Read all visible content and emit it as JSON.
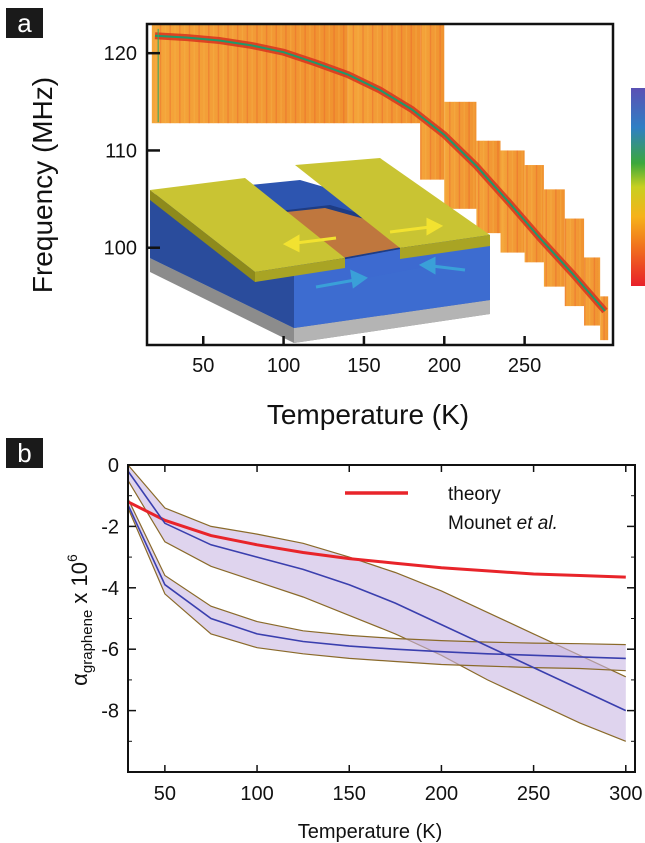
{
  "panel_a": {
    "tag": "a",
    "xlabel": "Temperature (K)",
    "ylabel": "Frequency (MHz)"
  },
  "panel_b": {
    "tag": "b",
    "xlabel": "Temperature (K)",
    "ylabel_main": "α",
    "ylabel_sub": "graphene",
    "ylabel_mult": " x 10",
    "ylabel_exp": "6",
    "legend_line1": "theory",
    "legend_line2_a": "Mounet ",
    "legend_line2_b": "et al."
  },
  "colors": {
    "colorbar": [
      "#e8202a",
      "#f06a1e",
      "#f6b21a",
      "#c8d020",
      "#3ca83c",
      "#2f7fc4",
      "#5b50b4"
    ],
    "theory": "#e8242a",
    "fit": "#3a3fae",
    "band_fill": "#c9b8e3",
    "band_edge": "#8a6a2a"
  },
  "chart_data": [
    {
      "type": "heatmap",
      "description_series": "resonance frequency vs temperature",
      "xlabel": "Temperature (K)",
      "ylabel": "Frequency (MHz)",
      "xlim": [
        15,
        305
      ],
      "ylim": [
        90,
        123
      ],
      "xticks": [
        50,
        100,
        150,
        200,
        250
      ],
      "yticks": [
        100,
        110,
        120
      ],
      "ridge": {
        "x": [
          20,
          40,
          60,
          80,
          100,
          120,
          140,
          160,
          180,
          200,
          220,
          240,
          260,
          280,
          300
        ],
        "y": [
          121.8,
          121.6,
          121.3,
          120.8,
          120.1,
          119.0,
          117.8,
          116.2,
          114.2,
          111.6,
          108.4,
          104.7,
          100.9,
          97.3,
          93.5
        ]
      }
    },
    {
      "type": "line",
      "xlabel": "Temperature (K)",
      "xlim": [
        30,
        305
      ],
      "ylim": [
        -10,
        0
      ],
      "xticks": [
        50,
        100,
        150,
        200,
        250,
        300
      ],
      "yticks": [
        0,
        -2,
        -4,
        -6,
        -8
      ],
      "legend": "top-right",
      "x": [
        30,
        50,
        75,
        100,
        125,
        150,
        175,
        200,
        225,
        250,
        275,
        300
      ],
      "series": [
        {
          "name": "theory Mounet et al.",
          "values": [
            -1.2,
            -1.8,
            -2.3,
            -2.6,
            -2.85,
            -3.05,
            -3.2,
            -3.35,
            -3.45,
            -3.55,
            -3.6,
            -3.65
          ]
        },
        {
          "values": [
            -0.2,
            -1.9,
            -2.6,
            -3.0,
            -3.4,
            -3.9,
            -4.5,
            -5.2,
            -5.9,
            -6.6,
            -7.3,
            -8.0
          ]
        },
        {
          "values": [
            -1.3,
            -3.9,
            -5.0,
            -5.5,
            -5.75,
            -5.9,
            -6.0,
            -6.08,
            -6.15,
            -6.2,
            -6.25,
            -6.3
          ]
        }
      ],
      "bands": [
        {
          "x": [
            30,
            50,
            75,
            100,
            125,
            150,
            175,
            200,
            225,
            250,
            275,
            300
          ],
          "upper": [
            0.0,
            -1.4,
            -2.0,
            -2.25,
            -2.55,
            -3.0,
            -3.5,
            -4.1,
            -4.8,
            -5.5,
            -6.2,
            -6.9
          ],
          "lower": [
            -0.5,
            -2.5,
            -3.3,
            -3.8,
            -4.3,
            -4.9,
            -5.5,
            -6.2,
            -7.0,
            -7.7,
            -8.4,
            -9.0
          ]
        },
        {
          "x": [
            30,
            50,
            75,
            100,
            125,
            150,
            175,
            200,
            225,
            250,
            275,
            300
          ],
          "upper": [
            -1.1,
            -3.6,
            -4.6,
            -5.1,
            -5.4,
            -5.55,
            -5.65,
            -5.72,
            -5.77,
            -5.8,
            -5.82,
            -5.85
          ],
          "lower": [
            -1.4,
            -4.2,
            -5.5,
            -5.95,
            -6.15,
            -6.3,
            -6.4,
            -6.5,
            -6.55,
            -6.6,
            -6.63,
            -6.7
          ]
        }
      ]
    }
  ]
}
